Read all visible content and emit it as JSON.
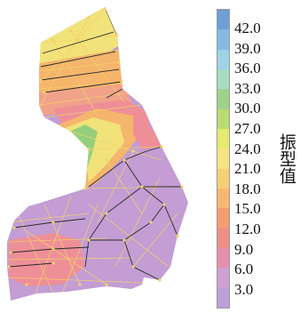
{
  "legend": {
    "title": "振型值",
    "ticks": [
      "42.0",
      "39.0",
      "36.0",
      "33.0",
      "30.0",
      "27.0",
      "24.0",
      "21.0",
      "18.0",
      "15.0",
      "12.0",
      "9.0",
      "6.0",
      "3.0"
    ],
    "colors": [
      "#6f9fd6",
      "#86b9e2",
      "#9ed3e6",
      "#a9dcc4",
      "#9fd18b",
      "#b8dc6e",
      "#e5ea70",
      "#f4e483",
      "#f7cf76",
      "#f6b870",
      "#f39d70",
      "#ee8f86",
      "#e58fad",
      "#cfa0d2",
      "#bc9fd8"
    ]
  },
  "map": {
    "region_colors": {
      "base": "#c39dd4",
      "hot_green": "#96cf7c",
      "yellow": "#f1e27a",
      "orange": "#f5b56c",
      "pink": "#ee8f98",
      "salmon": "#f0a28a"
    },
    "mesh_color": "#f2d36a",
    "edge_color": "#2a2a2a"
  }
}
